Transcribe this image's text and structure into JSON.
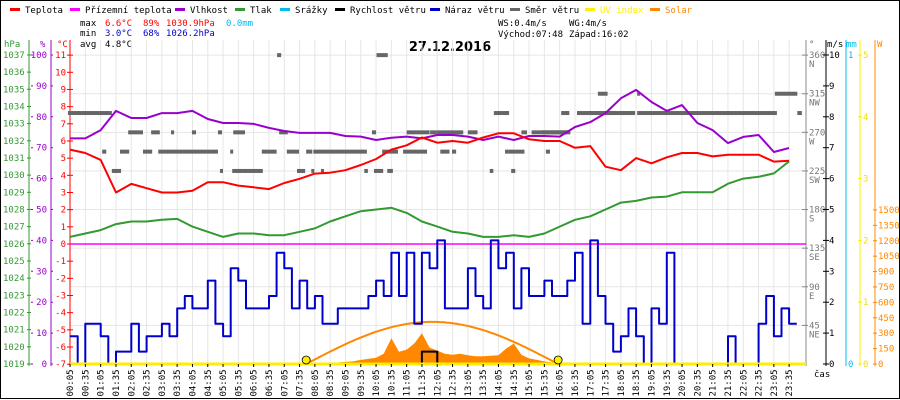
{
  "legend": [
    {
      "label": "Teplota",
      "color": "#ff0000"
    },
    {
      "label": "Přízemní teplota",
      "color": "#ff00ff"
    },
    {
      "label": "Vlhkost",
      "color": "#9900cc"
    },
    {
      "label": "Tlak",
      "color": "#339933"
    },
    {
      "label": "Srážky",
      "color": "#00bbee"
    },
    {
      "label": "Rychlost větru",
      "color": "#000000"
    },
    {
      "label": "Náraz větru",
      "color": "#0000cc"
    },
    {
      "label": "Směr větru",
      "color": "#666666"
    },
    {
      "label": "UV index",
      "color": "#ffee00"
    },
    {
      "label": "Solar",
      "color": "#ff8800"
    }
  ],
  "stats": {
    "max_label": "max",
    "min_label": "min",
    "avg_label": "avg",
    "max_temp": "6.6°C",
    "max_hum": "89%",
    "max_pres": "1030.9hPa",
    "rain": "0.0mm",
    "min_temp": "3.0°C",
    "min_hum": "68%",
    "min_pres": "1026.2hPa",
    "avg_temp": "4.8°C",
    "ws": "WS:0.4m/s",
    "wg": "WG:4m/s",
    "sunrise": "Východ:07:48",
    "sunset": "Západ:16:02"
  },
  "units": {
    "hpa": "hPa",
    "pct": "%",
    "degc": "°C",
    "deg": "°",
    "ms": "m/s",
    "mm": "mm",
    "w": "W"
  },
  "chart_data": {
    "type": "line",
    "title": "27.12.2016",
    "xlabel": "čas",
    "x_ticks": [
      "00:05",
      "00:35",
      "01:05",
      "01:35",
      "02:05",
      "02:35",
      "03:05",
      "03:35",
      "04:05",
      "04:35",
      "05:05",
      "05:35",
      "06:05",
      "06:35",
      "07:05",
      "07:35",
      "08:05",
      "08:35",
      "09:05",
      "09:35",
      "10:05",
      "10:35",
      "11:05",
      "11:35",
      "12:05",
      "12:35",
      "13:05",
      "13:35",
      "14:05",
      "14:35",
      "15:05",
      "15:35",
      "16:05",
      "16:35",
      "17:05",
      "17:35",
      "18:05",
      "18:35",
      "19:05",
      "19:35",
      "20:05",
      "20:35",
      "21:05",
      "21:35",
      "22:05",
      "22:35",
      "23:05",
      "23:35"
    ],
    "axes": {
      "pressure_hpa": {
        "min": 1019,
        "max": 1037,
        "step": 1
      },
      "humidity_pct": {
        "min": 0,
        "max": 100,
        "step": 10
      },
      "temperature_c": {
        "min": -7,
        "max": 11,
        "step": 1
      },
      "wind_dir_deg": {
        "ticks": [
          {
            "v": 360,
            "c": "N"
          },
          {
            "v": 315,
            "c": "NW"
          },
          {
            "v": 270,
            "c": "W"
          },
          {
            "v": 225,
            "c": "SW"
          },
          {
            "v": 180,
            "c": "S"
          },
          {
            "v": 135,
            "c": "SE"
          },
          {
            "v": 90,
            "c": "E"
          },
          {
            "v": 45,
            "c": "NE"
          }
        ]
      },
      "wind_ms": {
        "min": 0,
        "max": 10,
        "step": 1
      },
      "rain_mm": {
        "ticks": [
          0,
          1
        ]
      },
      "uv": {
        "ticks": [
          0,
          1,
          2,
          3,
          4,
          5
        ]
      },
      "solar_w": {
        "ticks": [
          0,
          150,
          300,
          450,
          600,
          750,
          900,
          1050,
          1200,
          1350,
          1500
        ]
      }
    },
    "half_hour_series": {
      "start": "00:05",
      "step_min": 30,
      "temperature": [
        5.5,
        5.3,
        4.9,
        3.0,
        3.5,
        3.25,
        3.0,
        3.0,
        3.1,
        3.6,
        3.6,
        3.4,
        3.3,
        3.2,
        3.55,
        3.8,
        4.1,
        4.15,
        4.3,
        4.6,
        4.95,
        5.5,
        5.75,
        6.2,
        5.9,
        6.0,
        5.9,
        6.2,
        6.45,
        6.45,
        6.1,
        6.0,
        6.0,
        5.6,
        5.7,
        4.5,
        4.3,
        5.0,
        4.7,
        5.05,
        5.3,
        5.3,
        5.1,
        5.2,
        5.2,
        5.2,
        4.8,
        4.85
      ],
      "feels_like": [
        0,
        0,
        0,
        0,
        0,
        0,
        0,
        0,
        0,
        0,
        0,
        0,
        0,
        0,
        0,
        0,
        0,
        0,
        0,
        0,
        0,
        0,
        0,
        0,
        0,
        0,
        0,
        0,
        0,
        0,
        0,
        0,
        0,
        0,
        0,
        0,
        0,
        0,
        0,
        0,
        0,
        0,
        0,
        0,
        0,
        0,
        0,
        0
      ],
      "humidity": [
        73,
        73,
        75.7,
        81.9,
        79.6,
        79.6,
        81.2,
        81.2,
        81.9,
        79.3,
        78,
        78,
        77.7,
        76.4,
        75.4,
        74.8,
        74.8,
        74.8,
        73.8,
        73.6,
        72.5,
        73.2,
        73.6,
        73,
        74.1,
        74.1,
        73.6,
        72.5,
        73.6,
        72.5,
        73.8,
        73.8,
        73.6,
        76.7,
        78.3,
        81.2,
        86,
        88.7,
        84.8,
        81.9,
        83.8,
        78,
        75.7,
        71.5,
        73.5,
        74.1,
        68.6,
        69.9
      ],
      "pressure": [
        1026.4,
        1026.6,
        1026.8,
        1027.15,
        1027.3,
        1027.3,
        1027.4,
        1027.45,
        1027.0,
        1026.7,
        1026.4,
        1026.6,
        1026.6,
        1026.5,
        1026.5,
        1026.7,
        1026.9,
        1027.3,
        1027.6,
        1027.9,
        1028.0,
        1028.1,
        1027.8,
        1027.3,
        1027.0,
        1026.7,
        1026.6,
        1026.4,
        1026.4,
        1026.5,
        1026.4,
        1026.6,
        1027.0,
        1027.4,
        1027.6,
        1028.0,
        1028.4,
        1028.5,
        1028.7,
        1028.75,
        1029.0,
        1029.0,
        1029.0,
        1029.5,
        1029.8,
        1029.9,
        1030.1,
        1030.8
      ]
    },
    "quarter_hour_series": {
      "start": "00:05",
      "step_min": 15,
      "wind_gust": [
        0.9,
        0,
        1.3,
        1.3,
        0.9,
        0,
        0.4,
        0.4,
        1.3,
        0.4,
        0.9,
        0.9,
        1.3,
        0.9,
        1.8,
        2.2,
        1.8,
        1.8,
        2.7,
        1.3,
        0.9,
        3.1,
        2.7,
        1.8,
        1.8,
        1.8,
        2.2,
        3.6,
        3.1,
        1.8,
        2.7,
        1.8,
        2.2,
        1.3,
        1.3,
        1.8,
        1.8,
        1.8,
        1.8,
        2.2,
        2.7,
        2.2,
        3.6,
        2.2,
        3.6,
        1.3,
        3.6,
        3.1,
        4.0,
        1.8,
        1.8,
        1.8,
        3.1,
        2.2,
        1.8,
        4.0,
        3.1,
        3.6,
        1.8,
        3.1,
        2.2,
        2.2,
        2.7,
        2.2,
        2.2,
        2.7,
        3.6,
        1.3,
        4.0,
        2.2,
        1.3,
        0.4,
        0.9,
        1.8,
        0.9,
        0,
        1.8,
        1.3,
        3.6,
        0,
        0,
        0,
        0,
        0,
        0,
        0,
        0.9,
        0,
        0,
        0,
        1.3,
        2.2,
        0.9,
        1.8,
        1.3,
        1.3
      ],
      "wind_speed": [
        0,
        0,
        0,
        0,
        0,
        0,
        0,
        0,
        0,
        0,
        0,
        0,
        0,
        0,
        0,
        0,
        0,
        0,
        0,
        0,
        0,
        0,
        0,
        0,
        0,
        0,
        0,
        0,
        0,
        0,
        0,
        0,
        0,
        0,
        0,
        0,
        0,
        0,
        0,
        0,
        0,
        0,
        0,
        0,
        0,
        0,
        0.4,
        0.4,
        0,
        0,
        0,
        0,
        0,
        0,
        0,
        0,
        0,
        0,
        0,
        0,
        0,
        0,
        0,
        0,
        0,
        0,
        0,
        0,
        0,
        0,
        0,
        0,
        0,
        0,
        0,
        0,
        0,
        0,
        0,
        0,
        0,
        0,
        0,
        0,
        0,
        0,
        0,
        0,
        0,
        0,
        0,
        0,
        0,
        0,
        0,
        0
      ],
      "uv_index": 0,
      "rain_mm": 0
    },
    "solar": {
      "start": "07:50",
      "step_min": 15,
      "values": [
        0,
        0,
        5,
        10,
        15,
        20,
        25,
        40,
        50,
        60,
        100,
        250,
        120,
        140,
        200,
        300,
        160,
        130,
        100,
        90,
        100,
        85,
        75,
        75,
        80,
        85,
        150,
        200,
        90,
        55,
        40,
        25,
        15,
        0
      ],
      "theoretical_peak_w": 410,
      "sunrise": "07:48",
      "sunset": "16:02"
    },
    "wind_direction_segments": [
      [
        "00:01",
        "01:27",
        292.5
      ],
      [
        "01:08",
        "01:16",
        247.5
      ],
      [
        "01:27",
        "01:45",
        225
      ],
      [
        "01:43",
        "02:01",
        247.5
      ],
      [
        "01:59",
        "02:28",
        270
      ],
      [
        "02:28",
        "02:46",
        247.5
      ],
      [
        "02:44",
        "03:01",
        270
      ],
      [
        "02:58",
        "04:55",
        247.5
      ],
      [
        "03:23",
        "03:29",
        270
      ],
      [
        "04:04",
        "04:12",
        270
      ],
      [
        "04:59",
        "05:03",
        225
      ],
      [
        "04:55",
        "05:03",
        270
      ],
      [
        "05:19",
        "05:23",
        247.5
      ],
      [
        "05:23",
        "05:44",
        225
      ],
      [
        "05:25",
        "05:48",
        270
      ],
      [
        "05:44",
        "06:23",
        225
      ],
      [
        "06:21",
        "06:50",
        247.5
      ],
      [
        "06:51",
        "06:59",
        360
      ],
      [
        "06:55",
        "07:12",
        270
      ],
      [
        "07:10",
        "07:34",
        247.5
      ],
      [
        "07:30",
        "07:46",
        225
      ],
      [
        "07:48",
        "08:00",
        247.5
      ],
      [
        "07:58",
        "08:02",
        225
      ],
      [
        "08:02",
        "09:47",
        247.5
      ],
      [
        "08:17",
        "08:21",
        225
      ],
      [
        "09:42",
        "09:49",
        225
      ],
      [
        "09:57",
        "10:05",
        270
      ],
      [
        "10:01",
        "10:19",
        225
      ],
      [
        "10:17",
        "10:48",
        247.5
      ],
      [
        "10:27",
        "10:38",
        225
      ],
      [
        "10:06",
        "10:28",
        360
      ],
      [
        "10:58",
        "11:45",
        247.5
      ],
      [
        "11:05",
        "11:50",
        270
      ],
      [
        "11:51",
        "12:04",
        270
      ],
      [
        "12:04",
        "12:56",
        270
      ],
      [
        "12:11",
        "12:29",
        247.5
      ],
      [
        "12:34",
        "12:42",
        247.5
      ],
      [
        "13:05",
        "13:24",
        270
      ],
      [
        "13:48",
        "13:55",
        225
      ],
      [
        "13:56",
        "14:21",
        292.5
      ],
      [
        "14:18",
        "14:24",
        247.5
      ],
      [
        "14:24",
        "14:56",
        247.5
      ],
      [
        "14:30",
        "14:38",
        225
      ],
      [
        "14:20",
        "14:25",
        292.5
      ],
      [
        "14:50",
        "15:01",
        270
      ],
      [
        "15:10",
        "16:20",
        270
      ],
      [
        "15:30",
        "16:26",
        270
      ],
      [
        "15:38",
        "15:46",
        247.5
      ],
      [
        "16:24",
        "16:08",
        292.5
      ],
      [
        "16:39",
        "17:48",
        292.5
      ],
      [
        "17:00",
        "17:08",
        292.5
      ],
      [
        "17:15",
        "18:15",
        292.5
      ],
      [
        "17:20",
        "17:39",
        315
      ],
      [
        "18:06",
        "18:33",
        292.5
      ],
      [
        "18:37",
        "18:39",
        315
      ],
      [
        "18:37",
        "23:11",
        292.5
      ],
      [
        "23:07",
        "23:51",
        315
      ],
      [
        "23:51",
        "24:00",
        292.5
      ]
    ]
  }
}
